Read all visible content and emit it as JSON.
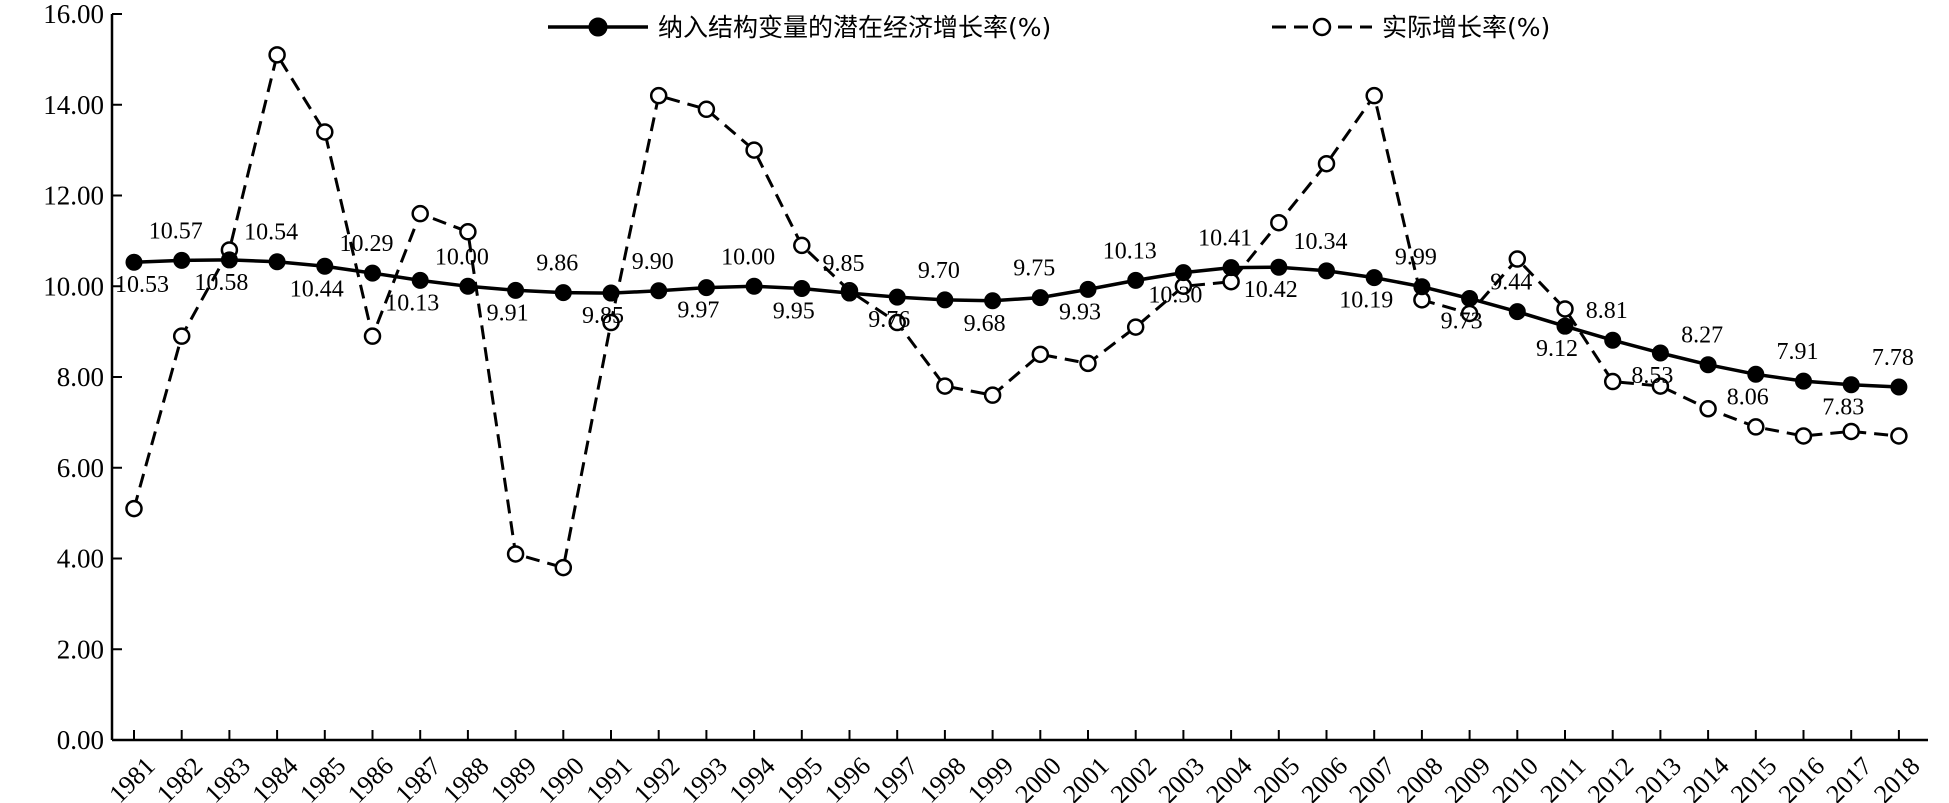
{
  "chart_data": {
    "type": "line",
    "title": "",
    "xlabel": "",
    "ylabel": "",
    "ylim": [
      0,
      16
    ],
    "yticks": [
      "0.00",
      "2.00",
      "4.00",
      "6.00",
      "8.00",
      "10.00",
      "12.00",
      "14.00",
      "16.00"
    ],
    "grid": false,
    "legend_position": "top-center",
    "categories": [
      "1981",
      "1982",
      "1983",
      "1984",
      "1985",
      "1986",
      "1987",
      "1988",
      "1989",
      "1990",
      "1991",
      "1992",
      "1993",
      "1994",
      "1995",
      "1996",
      "1997",
      "1998",
      "1999",
      "2000",
      "2001",
      "2002",
      "2003",
      "2004",
      "2005",
      "2006",
      "2007",
      "2008",
      "2009",
      "2010",
      "2011",
      "2012",
      "2013",
      "2014",
      "2015",
      "2016",
      "2017",
      "2018"
    ],
    "series": [
      {
        "name": "纳入结构变量的潜在经济增长率(%)",
        "marker": "filled-circle",
        "line_style": "solid",
        "values": [
          10.53,
          10.57,
          10.58,
          10.54,
          10.44,
          10.29,
          10.13,
          10.0,
          9.91,
          9.86,
          9.85,
          9.9,
          9.97,
          10.0,
          9.95,
          9.85,
          9.76,
          9.7,
          9.68,
          9.75,
          9.93,
          10.13,
          10.3,
          10.41,
          10.42,
          10.34,
          10.19,
          9.99,
          9.73,
          9.44,
          9.12,
          8.81,
          8.53,
          8.27,
          8.06,
          7.91,
          7.83,
          7.78
        ],
        "labels": [
          "10.53",
          "10.57",
          "10.58",
          "10.54",
          "10.44",
          "10.29",
          "10.13",
          "10.00",
          "9.91",
          "9.86",
          "9.85",
          "9.90",
          "9.97",
          "10.00",
          "9.95",
          "9.85",
          "9.76",
          "9.70",
          "9.68",
          "9.75",
          "9.93",
          "10.13",
          "10.30",
          "10.41",
          "10.42",
          "10.34",
          "10.19",
          "9.99",
          "9.73",
          "9.44",
          "9.12",
          "8.81",
          "8.53",
          "8.27",
          "8.06",
          "7.91",
          "7.83",
          "7.78"
        ]
      },
      {
        "name": "实际增长率(%)",
        "marker": "open-circle",
        "line_style": "dashed",
        "values": [
          5.1,
          8.9,
          10.8,
          15.1,
          13.4,
          8.9,
          11.6,
          11.2,
          4.1,
          3.8,
          9.2,
          14.2,
          13.9,
          13.0,
          10.9,
          9.9,
          9.2,
          7.8,
          7.6,
          8.5,
          8.3,
          9.1,
          10.0,
          10.1,
          11.4,
          12.7,
          14.2,
          9.7,
          9.4,
          10.6,
          9.5,
          7.9,
          7.8,
          7.3,
          6.9,
          6.7,
          6.8,
          6.7
        ]
      }
    ]
  }
}
